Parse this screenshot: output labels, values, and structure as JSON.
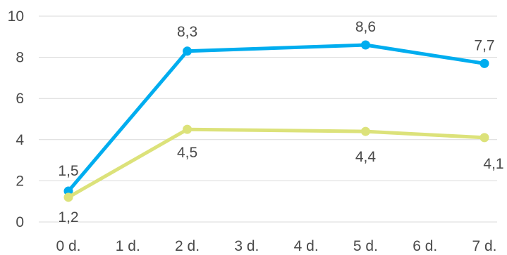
{
  "chart_data": {
    "type": "line",
    "title": "",
    "xlabel": "",
    "ylabel": "",
    "x_tick_labels": [
      "0 d.",
      "1 d.",
      "2 d.",
      "3 d.",
      "4 d.",
      "5 d.",
      "6 d.",
      "7 d."
    ],
    "x_values": [
      0,
      1,
      2,
      3,
      4,
      5,
      6,
      7
    ],
    "xlim": [
      0,
      7
    ],
    "ylim": [
      0,
      10
    ],
    "y_ticks": [
      0,
      2,
      4,
      6,
      8,
      10
    ],
    "grid": true,
    "legend": "none",
    "series": [
      {
        "color": "#00adef",
        "x": [
          0,
          2,
          5,
          7
        ],
        "values": [
          1.5,
          8.3,
          8.6,
          7.7
        ],
        "labels": [
          "1,5",
          "8,3",
          "8,6",
          "7,7"
        ]
      },
      {
        "color": "#dce27a",
        "x": [
          0,
          2,
          5,
          7
        ],
        "values": [
          1.2,
          4.5,
          4.4,
          4.1
        ],
        "labels": [
          "1,2",
          "4,5",
          "4,4",
          "4,1"
        ]
      }
    ]
  }
}
